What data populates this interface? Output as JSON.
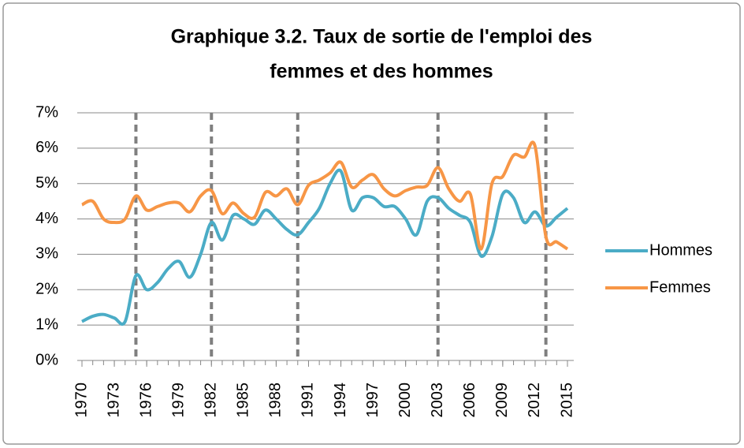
{
  "chart_data": {
    "type": "line",
    "title": [
      "Graphique 3.2. Taux de sortie de l'emploi des",
      "femmes et des hommes"
    ],
    "x": [
      1970,
      1971,
      1972,
      1973,
      1974,
      1975,
      1976,
      1977,
      1978,
      1979,
      1980,
      1981,
      1982,
      1983,
      1984,
      1985,
      1986,
      1987,
      1988,
      1989,
      1990,
      1991,
      1992,
      1993,
      1994,
      1995,
      1996,
      1997,
      1998,
      1999,
      2000,
      2001,
      2002,
      2003,
      2004,
      2005,
      2006,
      2007,
      2008,
      2009,
      2010,
      2011,
      2012,
      2013,
      2014,
      2015
    ],
    "series": [
      {
        "name": "Hommes",
        "color": "#4bacc6",
        "values": [
          1.1,
          1.25,
          1.3,
          1.2,
          1.1,
          2.4,
          2.0,
          2.2,
          2.6,
          2.8,
          2.35,
          3.0,
          3.9,
          3.4,
          4.1,
          4.0,
          3.85,
          4.25,
          4.0,
          3.7,
          3.55,
          3.9,
          4.3,
          5.0,
          5.35,
          4.25,
          4.6,
          4.6,
          4.35,
          4.35,
          4.0,
          3.55,
          4.5,
          4.6,
          4.3,
          4.1,
          3.9,
          2.95,
          3.5,
          4.7,
          4.6,
          3.9,
          4.2,
          3.8,
          4.05,
          4.3
        ]
      },
      {
        "name": "Femmes",
        "color": "#f79646",
        "values": [
          4.4,
          4.5,
          4.0,
          3.9,
          4.0,
          4.65,
          4.25,
          4.35,
          4.45,
          4.45,
          4.2,
          4.65,
          4.8,
          4.15,
          4.45,
          4.15,
          4.05,
          4.75,
          4.65,
          4.85,
          4.4,
          4.95,
          5.1,
          5.3,
          5.6,
          4.9,
          5.1,
          5.25,
          4.85,
          4.65,
          4.8,
          4.9,
          4.95,
          5.45,
          4.85,
          4.5,
          4.7,
          3.15,
          5.0,
          5.2,
          5.8,
          5.75,
          6.05,
          3.5,
          3.35,
          3.15
        ]
      }
    ],
    "xlim": [
      1970,
      2015
    ],
    "xticks": [
      1970,
      1973,
      1976,
      1979,
      1982,
      1985,
      1988,
      1991,
      1994,
      1997,
      2000,
      2003,
      2006,
      2009,
      2012,
      2015
    ],
    "ylim": [
      0,
      7
    ],
    "yticks": [
      {
        "value": 0,
        "label": "0%"
      },
      {
        "value": 1,
        "label": "1%"
      },
      {
        "value": 2,
        "label": "2%"
      },
      {
        "value": 3,
        "label": "3%"
      },
      {
        "value": 4,
        "label": "4%"
      },
      {
        "value": 5,
        "label": "5%"
      },
      {
        "value": 6,
        "label": "6%"
      },
      {
        "value": 7,
        "label": "7%"
      }
    ],
    "vlines": [
      1975,
      1982,
      1990,
      2003,
      2013
    ],
    "grid": true,
    "legend": "right"
  }
}
